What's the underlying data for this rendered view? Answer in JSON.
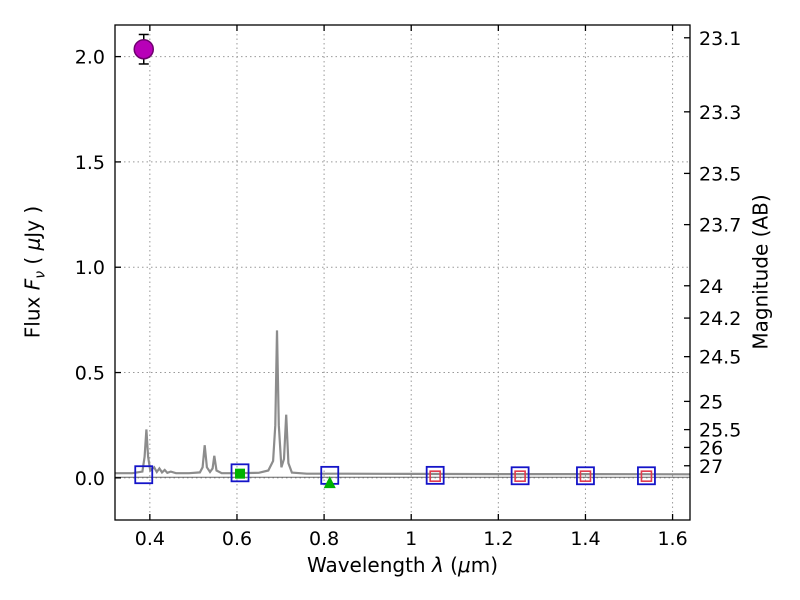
{
  "figure": {
    "background": "#ffffff",
    "frame_color": "#000000",
    "grid_color": "#999999"
  },
  "chart_data": {
    "type": "line",
    "title": "",
    "xlabel": "Wavelength λ (μm)",
    "xlabel_parts": {
      "p1": "Wavelength ",
      "lambda": "λ",
      "p2": " (",
      "mu": "μ",
      "p3": "m)"
    },
    "ylabel": "Flux Fν ( μJy )",
    "ylabel_parts": {
      "p1": "Flux ",
      "f": "F",
      "sub": "ν",
      "p2": " ( ",
      "mu": "μ",
      "p3": "Jy )"
    },
    "xlim": [
      0.32,
      1.64
    ],
    "ylim": [
      -0.2,
      2.15
    ],
    "x_ticks": [
      0.4,
      0.6,
      0.8,
      1.0,
      1.2,
      1.4,
      1.6
    ],
    "x_tick_labels": [
      "0.4",
      "0.6",
      "0.8",
      "1",
      "1.2",
      "1.4",
      "1.6"
    ],
    "y_ticks": [
      0.0,
      0.5,
      1.0,
      1.5,
      2.0
    ],
    "y_tick_labels": [
      "0.0",
      "0.5",
      "1.0",
      "1.5",
      "2.0"
    ],
    "right_axis": {
      "label": "Magnitude (AB)",
      "tick_values": [
        23.1,
        23.3,
        23.5,
        23.7,
        24,
        24.2,
        24.5,
        25,
        25.5,
        26,
        27
      ],
      "tick_labels": [
        "23.1",
        "23.3",
        "23.5",
        "23.7",
        "24",
        "24.2",
        "24.5",
        "25",
        "25.5",
        "26",
        "27"
      ],
      "ab_zeropoint_mag": 23.9
    },
    "grid": {
      "show": true,
      "style": "dotted"
    },
    "series": [
      {
        "name": "template-spectrum",
        "type": "line",
        "color": "#8c8c8c",
        "width": 2.2,
        "x": [
          0.32,
          0.36,
          0.383,
          0.388,
          0.392,
          0.396,
          0.401,
          0.41,
          0.416,
          0.422,
          0.428,
          0.434,
          0.44,
          0.448,
          0.46,
          0.49,
          0.515,
          0.521,
          0.526,
          0.531,
          0.538,
          0.544,
          0.548,
          0.553,
          0.565,
          0.6,
          0.65,
          0.672,
          0.683,
          0.688,
          0.692,
          0.696,
          0.702,
          0.708,
          0.713,
          0.718,
          0.726,
          0.76,
          0.85,
          1.0,
          1.2,
          1.4,
          1.64
        ],
        "y": [
          0.022,
          0.022,
          0.03,
          0.1,
          0.23,
          0.1,
          0.035,
          0.05,
          0.028,
          0.045,
          0.026,
          0.038,
          0.024,
          0.03,
          0.022,
          0.022,
          0.026,
          0.05,
          0.155,
          0.05,
          0.028,
          0.045,
          0.105,
          0.035,
          0.022,
          0.022,
          0.024,
          0.035,
          0.08,
          0.25,
          0.7,
          0.25,
          0.05,
          0.09,
          0.3,
          0.07,
          0.025,
          0.02,
          0.02,
          0.019,
          0.018,
          0.018,
          0.017
        ]
      },
      {
        "name": "continuum-line",
        "type": "line",
        "color": "#666666",
        "width": 1,
        "x": [
          0.32,
          1.64
        ],
        "y": [
          0.003,
          0.003
        ]
      }
    ],
    "markers": [
      {
        "name": "magenta-detection-point",
        "marker": "circle",
        "color": "#b800b8",
        "edge": "#6e006e",
        "size": 19,
        "yerr": 0.07,
        "points": [
          [
            0.386,
            2.035
          ]
        ]
      },
      {
        "name": "blue-open-squares-observed",
        "marker": "square-open",
        "color": "#1414c8",
        "size": 17,
        "lw": 1.8,
        "points": [
          [
            0.386,
            0.015
          ],
          [
            0.607,
            0.024
          ],
          [
            0.813,
            0.012
          ],
          [
            1.055,
            0.012
          ],
          [
            1.25,
            0.01
          ],
          [
            1.4,
            0.01
          ],
          [
            1.54,
            0.01
          ]
        ]
      },
      {
        "name": "red-open-squares-model",
        "marker": "square-open",
        "color": "#e13b4e",
        "size": 10,
        "lw": 1.6,
        "points": [
          [
            1.055,
            0.008
          ],
          [
            1.25,
            0.008
          ],
          [
            1.4,
            0.008
          ],
          [
            1.54,
            0.008
          ]
        ]
      },
      {
        "name": "green-filled-square",
        "marker": "square-filled",
        "color": "#00b200",
        "size": 9,
        "points": [
          [
            0.607,
            0.02
          ]
        ]
      },
      {
        "name": "green-filled-triangle",
        "marker": "triangle-filled",
        "color": "#00b200",
        "size": 12,
        "points": [
          [
            0.813,
            -0.02
          ]
        ]
      }
    ]
  }
}
